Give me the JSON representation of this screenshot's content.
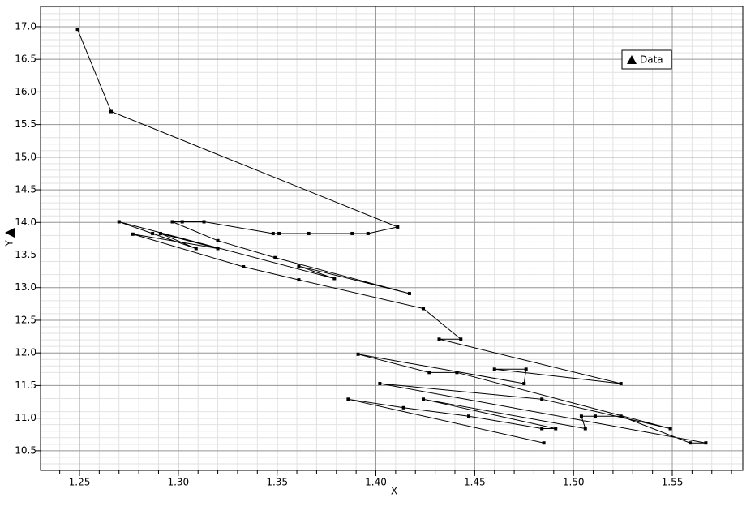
{
  "chart_data": {
    "type": "line",
    "x_label": "X",
    "y_label": "Y",
    "xlim": [
      1.2303,
      1.5857
    ],
    "ylim": [
      10.2,
      17.31
    ],
    "xticks": [
      1.25,
      {
        "value": 1.3,
        "label": "1.30"
      },
      1.35,
      {
        "value": 1.4,
        "label": "1.40"
      },
      1.45,
      {
        "value": 1.5,
        "label": "1.50"
      },
      1.55
    ],
    "yticks": [
      10.5,
      {
        "value": 11,
        "label": "11.0"
      },
      11.5,
      {
        "value": 12,
        "label": "12.0"
      },
      12.5,
      {
        "value": 13,
        "label": "13.0"
      },
      13.5,
      {
        "value": 14,
        "label": "14.0"
      },
      14.5,
      {
        "value": 15,
        "label": "15.0"
      },
      15.5,
      {
        "value": 16,
        "label": "16.0"
      },
      16.5,
      {
        "value": 17,
        "label": "17.0"
      }
    ],
    "grid": true,
    "minor_grid": true,
    "legend_position": "upper right",
    "series": [
      {
        "name": "Data",
        "color": "#000000",
        "x": [
          1.249,
          1.266,
          1.411,
          1.396,
          1.388,
          1.366,
          1.351,
          1.348,
          1.313,
          1.302,
          1.297,
          1.32,
          1.349,
          1.417,
          1.361,
          1.379,
          1.27,
          1.287,
          1.309,
          1.291,
          1.32,
          1.277,
          1.333,
          1.361,
          1.424,
          1.443,
          1.432,
          1.524,
          1.46,
          1.476,
          1.475,
          1.391,
          1.427,
          1.441,
          1.549,
          1.484,
          1.402,
          1.567,
          1.559,
          1.524,
          1.511,
          1.504,
          1.506,
          1.424,
          1.491,
          1.484,
          1.447,
          1.414,
          1.386,
          1.485
        ],
        "values": [
          16.96,
          15.7,
          13.93,
          13.83,
          13.83,
          13.83,
          13.83,
          13.83,
          14.01,
          14.01,
          14.01,
          13.72,
          13.46,
          12.91,
          13.33,
          13.14,
          14.01,
          13.83,
          13.6,
          13.83,
          13.6,
          13.82,
          13.32,
          13.12,
          12.68,
          12.21,
          12.21,
          11.53,
          11.75,
          11.75,
          11.53,
          11.98,
          11.7,
          11.7,
          10.84,
          11.29,
          11.53,
          10.62,
          10.62,
          11.03,
          11.03,
          11.03,
          10.84,
          11.29,
          10.84,
          10.84,
          11.03,
          11.16,
          11.29,
          10.62
        ]
      }
    ]
  }
}
